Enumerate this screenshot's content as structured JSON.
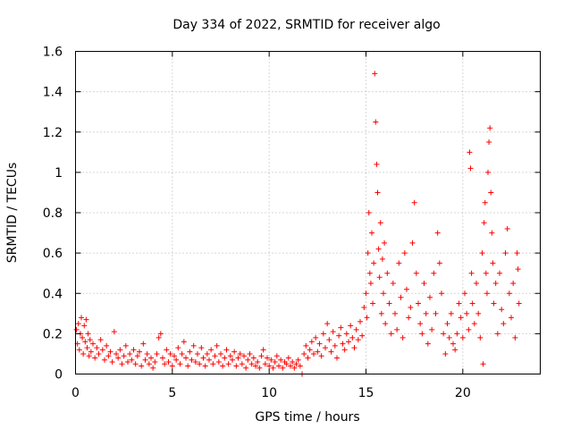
{
  "chart_data": {
    "type": "scatter",
    "title": "Day 334 of 2022, SRMTID for receiver algo",
    "xlabel": "GPS time / hours",
    "ylabel": "SRMTID / TECUs",
    "xlim": [
      0,
      24
    ],
    "ylim": [
      0,
      1.6
    ],
    "xticks": [
      0,
      5,
      10,
      15,
      20
    ],
    "xtick_labels": [
      "0",
      "5",
      "10",
      "15",
      "20"
    ],
    "yticks": [
      0,
      0.2,
      0.4,
      0.6,
      0.8,
      1.0,
      1.2,
      1.4,
      1.6
    ],
    "ytick_labels": [
      "0",
      "0.2",
      "0.4",
      "0.6",
      "0.8",
      "1",
      "1.2",
      "1.4",
      "1.6"
    ],
    "grid": true,
    "marker": "+",
    "color": "#ff0000",
    "series": [
      {
        "name": "SRMTID",
        "points": [
          [
            0.05,
            0.22
          ],
          [
            0.1,
            0.15
          ],
          [
            0.15,
            0.25
          ],
          [
            0.2,
            0.12
          ],
          [
            0.25,
            0.2
          ],
          [
            0.3,
            0.28
          ],
          [
            0.35,
            0.18
          ],
          [
            0.4,
            0.1
          ],
          [
            0.45,
            0.24
          ],
          [
            0.5,
            0.16
          ],
          [
            0.55,
            0.27
          ],
          [
            0.6,
            0.13
          ],
          [
            0.65,
            0.2
          ],
          [
            0.7,
            0.09
          ],
          [
            0.75,
            0.17
          ],
          [
            0.8,
            0.11
          ],
          [
            0.9,
            0.15
          ],
          [
            1.0,
            0.08
          ],
          [
            1.1,
            0.13
          ],
          [
            1.2,
            0.1
          ],
          [
            1.3,
            0.17
          ],
          [
            1.4,
            0.12
          ],
          [
            1.5,
            0.07
          ],
          [
            1.6,
            0.14
          ],
          [
            1.7,
            0.09
          ],
          [
            1.8,
            0.11
          ],
          [
            1.9,
            0.06
          ],
          [
            2.0,
            0.21
          ],
          [
            2.1,
            0.1
          ],
          [
            2.2,
            0.08
          ],
          [
            2.3,
            0.12
          ],
          [
            2.4,
            0.05
          ],
          [
            2.5,
            0.09
          ],
          [
            2.6,
            0.14
          ],
          [
            2.7,
            0.06
          ],
          [
            2.8,
            0.1
          ],
          [
            2.9,
            0.07
          ],
          [
            3.0,
            0.12
          ],
          [
            3.1,
            0.05
          ],
          [
            3.2,
            0.09
          ],
          [
            3.3,
            0.11
          ],
          [
            3.4,
            0.04
          ],
          [
            3.5,
            0.15
          ],
          [
            3.6,
            0.07
          ],
          [
            3.7,
            0.1
          ],
          [
            3.8,
            0.05
          ],
          [
            3.9,
            0.08
          ],
          [
            4.0,
            0.03
          ],
          [
            4.1,
            0.06
          ],
          [
            4.2,
            0.1
          ],
          [
            4.3,
            0.18
          ],
          [
            4.4,
            0.2
          ],
          [
            4.5,
            0.08
          ],
          [
            4.6,
            0.05
          ],
          [
            4.7,
            0.12
          ],
          [
            4.8,
            0.06
          ],
          [
            4.9,
            0.1
          ],
          [
            5.0,
            0.04
          ],
          [
            5.1,
            0.09
          ],
          [
            5.2,
            0.07
          ],
          [
            5.3,
            0.13
          ],
          [
            5.4,
            0.05
          ],
          [
            5.5,
            0.1
          ],
          [
            5.6,
            0.16
          ],
          [
            5.7,
            0.08
          ],
          [
            5.8,
            0.04
          ],
          [
            5.9,
            0.11
          ],
          [
            6.0,
            0.07
          ],
          [
            6.1,
            0.14
          ],
          [
            6.2,
            0.06
          ],
          [
            6.3,
            0.1
          ],
          [
            6.4,
            0.05
          ],
          [
            6.5,
            0.13
          ],
          [
            6.6,
            0.08
          ],
          [
            6.7,
            0.04
          ],
          [
            6.8,
            0.1
          ],
          [
            6.9,
            0.07
          ],
          [
            7.0,
            0.12
          ],
          [
            7.1,
            0.05
          ],
          [
            7.2,
            0.09
          ],
          [
            7.3,
            0.14
          ],
          [
            7.4,
            0.06
          ],
          [
            7.5,
            0.1
          ],
          [
            7.6,
            0.04
          ],
          [
            7.7,
            0.08
          ],
          [
            7.8,
            0.12
          ],
          [
            7.9,
            0.05
          ],
          [
            8.0,
            0.09
          ],
          [
            8.1,
            0.07
          ],
          [
            8.2,
            0.11
          ],
          [
            8.3,
            0.04
          ],
          [
            8.4,
            0.08
          ],
          [
            8.5,
            0.1
          ],
          [
            8.6,
            0.05
          ],
          [
            8.7,
            0.09
          ],
          [
            8.8,
            0.03
          ],
          [
            8.9,
            0.07
          ],
          [
            9.0,
            0.1
          ],
          [
            9.1,
            0.05
          ],
          [
            9.2,
            0.08
          ],
          [
            9.3,
            0.04
          ],
          [
            9.4,
            0.06
          ],
          [
            9.5,
            0.03
          ],
          [
            9.6,
            0.09
          ],
          [
            9.7,
            0.12
          ],
          [
            9.8,
            0.05
          ],
          [
            9.9,
            0.08
          ],
          [
            10.0,
            0.04
          ],
          [
            10.1,
            0.07
          ],
          [
            10.2,
            0.03
          ],
          [
            10.3,
            0.06
          ],
          [
            10.4,
            0.09
          ],
          [
            10.5,
            0.04
          ],
          [
            10.6,
            0.07
          ],
          [
            10.7,
            0.03
          ],
          [
            10.8,
            0.06
          ],
          [
            10.9,
            0.05
          ],
          [
            11.0,
            0.08
          ],
          [
            11.1,
            0.04
          ],
          [
            11.2,
            0.06
          ],
          [
            11.3,
            0.03
          ],
          [
            11.4,
            0.05
          ],
          [
            11.5,
            0.07
          ],
          [
            11.6,
            0.04
          ],
          [
            11.7,
            0.0
          ],
          [
            11.8,
            0.1
          ],
          [
            11.9,
            0.14
          ],
          [
            12.0,
            0.08
          ],
          [
            12.1,
            0.12
          ],
          [
            12.2,
            0.16
          ],
          [
            12.3,
            0.1
          ],
          [
            12.4,
            0.18
          ],
          [
            12.5,
            0.11
          ],
          [
            12.6,
            0.15
          ],
          [
            12.7,
            0.09
          ],
          [
            12.8,
            0.2
          ],
          [
            12.9,
            0.13
          ],
          [
            13.0,
            0.25
          ],
          [
            13.1,
            0.17
          ],
          [
            13.2,
            0.11
          ],
          [
            13.3,
            0.21
          ],
          [
            13.4,
            0.14
          ],
          [
            13.5,
            0.08
          ],
          [
            13.6,
            0.19
          ],
          [
            13.7,
            0.23
          ],
          [
            13.8,
            0.15
          ],
          [
            13.9,
            0.12
          ],
          [
            14.0,
            0.2
          ],
          [
            14.1,
            0.16
          ],
          [
            14.2,
            0.24
          ],
          [
            14.3,
            0.18
          ],
          [
            14.4,
            0.13
          ],
          [
            14.5,
            0.22
          ],
          [
            14.6,
            0.17
          ],
          [
            14.7,
            0.26
          ],
          [
            14.8,
            0.19
          ],
          [
            14.9,
            0.33
          ],
          [
            15.0,
            0.4
          ],
          [
            15.05,
            0.28
          ],
          [
            15.1,
            0.6
          ],
          [
            15.15,
            0.8
          ],
          [
            15.2,
            0.5
          ],
          [
            15.25,
            0.45
          ],
          [
            15.3,
            0.7
          ],
          [
            15.35,
            0.35
          ],
          [
            15.4,
            0.55
          ],
          [
            15.45,
            1.49
          ],
          [
            15.5,
            1.25
          ],
          [
            15.55,
            1.04
          ],
          [
            15.6,
            0.9
          ],
          [
            15.65,
            0.62
          ],
          [
            15.7,
            0.48
          ],
          [
            15.75,
            0.75
          ],
          [
            15.8,
            0.3
          ],
          [
            15.85,
            0.57
          ],
          [
            15.9,
            0.4
          ],
          [
            15.95,
            0.65
          ],
          [
            16.0,
            0.25
          ],
          [
            16.1,
            0.5
          ],
          [
            16.2,
            0.35
          ],
          [
            16.3,
            0.2
          ],
          [
            16.4,
            0.45
          ],
          [
            16.5,
            0.3
          ],
          [
            16.6,
            0.22
          ],
          [
            16.7,
            0.55
          ],
          [
            16.8,
            0.38
          ],
          [
            16.9,
            0.18
          ],
          [
            17.0,
            0.6
          ],
          [
            17.1,
            0.42
          ],
          [
            17.2,
            0.28
          ],
          [
            17.3,
            0.33
          ],
          [
            17.4,
            0.65
          ],
          [
            17.5,
            0.85
          ],
          [
            17.6,
            0.5
          ],
          [
            17.7,
            0.35
          ],
          [
            17.8,
            0.25
          ],
          [
            17.9,
            0.2
          ],
          [
            18.0,
            0.45
          ],
          [
            18.1,
            0.3
          ],
          [
            18.2,
            0.15
          ],
          [
            18.3,
            0.38
          ],
          [
            18.4,
            0.22
          ],
          [
            18.5,
            0.5
          ],
          [
            18.6,
            0.3
          ],
          [
            18.7,
            0.7
          ],
          [
            18.8,
            0.55
          ],
          [
            18.9,
            0.4
          ],
          [
            19.0,
            0.2
          ],
          [
            19.1,
            0.1
          ],
          [
            19.2,
            0.25
          ],
          [
            19.3,
            0.18
          ],
          [
            19.4,
            0.3
          ],
          [
            19.5,
            0.15
          ],
          [
            19.6,
            0.12
          ],
          [
            19.7,
            0.2
          ],
          [
            19.8,
            0.35
          ],
          [
            19.9,
            0.28
          ],
          [
            20.0,
            0.18
          ],
          [
            20.1,
            0.4
          ],
          [
            20.2,
            0.3
          ],
          [
            20.3,
            0.22
          ],
          [
            20.35,
            1.1
          ],
          [
            20.4,
            1.02
          ],
          [
            20.45,
            0.5
          ],
          [
            20.5,
            0.35
          ],
          [
            20.6,
            0.25
          ],
          [
            20.7,
            0.45
          ],
          [
            20.8,
            0.3
          ],
          [
            20.9,
            0.18
          ],
          [
            21.0,
            0.6
          ],
          [
            21.05,
            0.05
          ],
          [
            21.1,
            0.75
          ],
          [
            21.15,
            0.85
          ],
          [
            21.2,
            0.5
          ],
          [
            21.25,
            0.4
          ],
          [
            21.3,
            1.0
          ],
          [
            21.35,
            1.15
          ],
          [
            21.4,
            1.22
          ],
          [
            21.45,
            0.9
          ],
          [
            21.5,
            0.7
          ],
          [
            21.55,
            0.55
          ],
          [
            21.6,
            0.35
          ],
          [
            21.7,
            0.45
          ],
          [
            21.8,
            0.2
          ],
          [
            21.9,
            0.5
          ],
          [
            22.0,
            0.32
          ],
          [
            22.1,
            0.25
          ],
          [
            22.2,
            0.6
          ],
          [
            22.3,
            0.72
          ],
          [
            22.4,
            0.4
          ],
          [
            22.5,
            0.28
          ],
          [
            22.6,
            0.45
          ],
          [
            22.7,
            0.18
          ],
          [
            22.8,
            0.6
          ],
          [
            22.85,
            0.52
          ],
          [
            22.9,
            0.35
          ]
        ]
      }
    ]
  }
}
